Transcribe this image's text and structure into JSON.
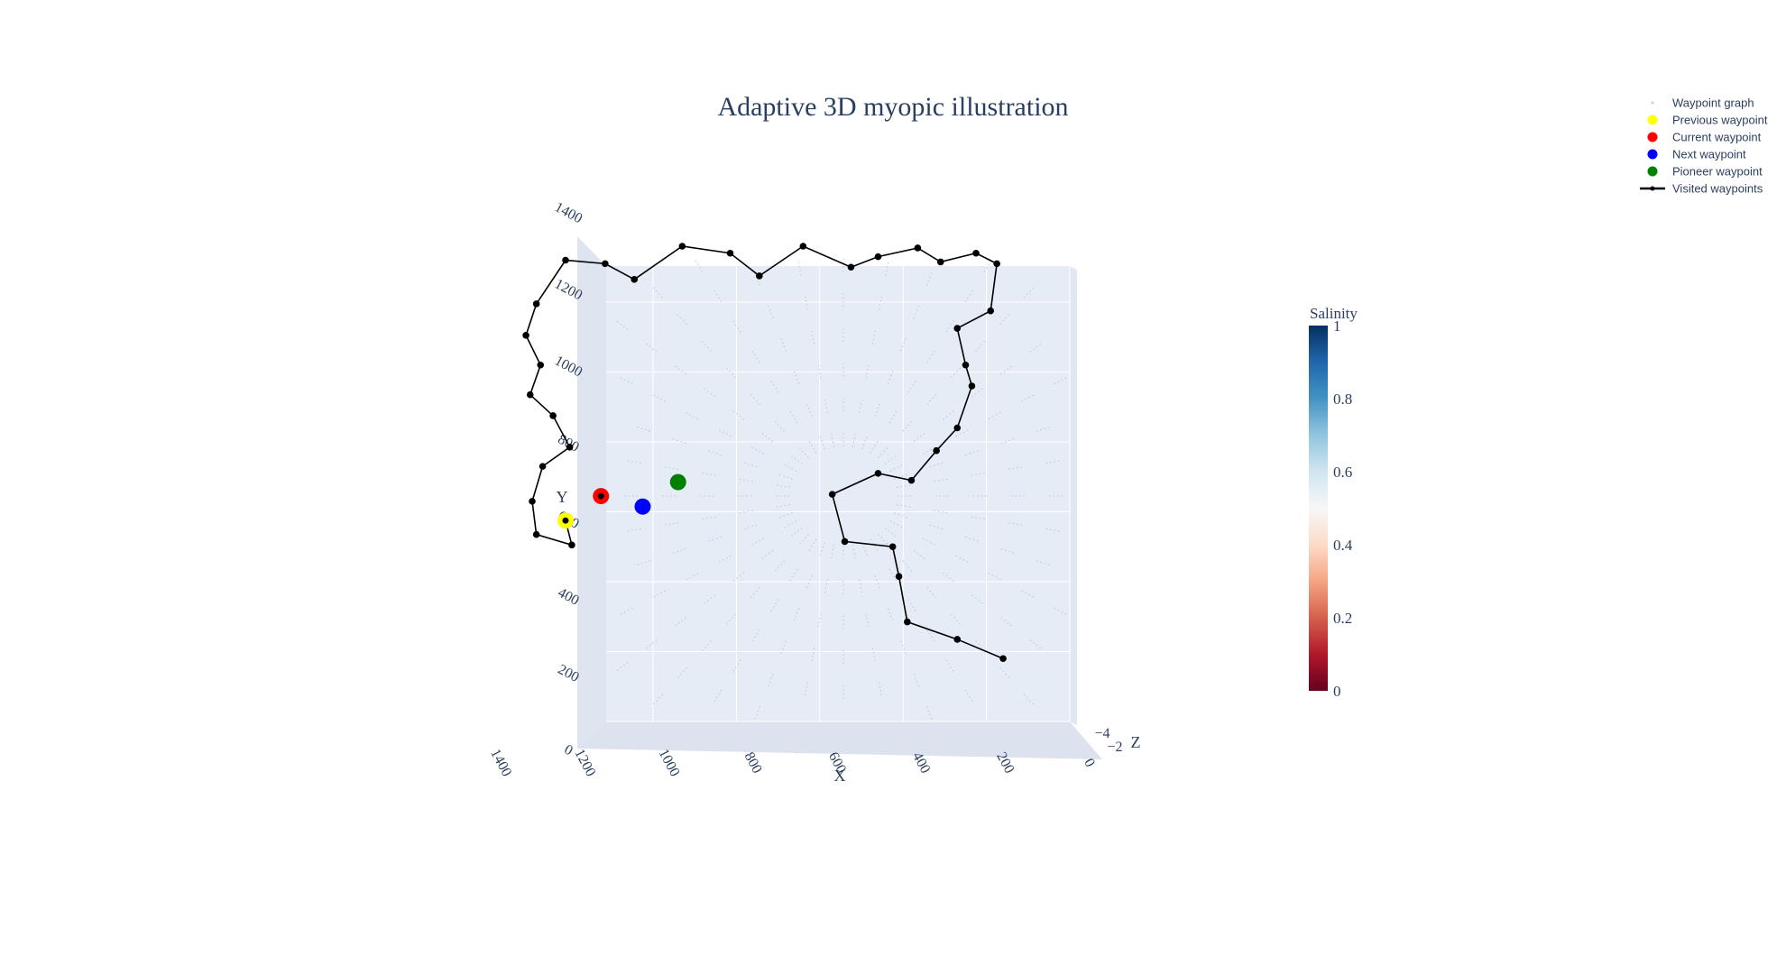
{
  "chart_data": {
    "type": "scatter",
    "title": "Adaptive 3D myopic illustration",
    "xlabel": "X",
    "ylabel": "Y",
    "zlabel": "Z",
    "x_ticks": [
      "0",
      "200",
      "400",
      "600",
      "800",
      "1000",
      "1200",
      "1400"
    ],
    "y_ticks": [
      "0",
      "200",
      "400",
      "600",
      "800",
      "1000",
      "1200",
      "1400"
    ],
    "z_ticks": [
      "−4",
      "−2"
    ],
    "xlim": [
      0,
      1500
    ],
    "ylim": [
      0,
      1450
    ],
    "x_reversed": true,
    "grid": true,
    "legend_position": "top-right",
    "legend": [
      {
        "name": "Waypoint graph",
        "symbol": "dot-small",
        "color": "#c8d0dc"
      },
      {
        "name": "Previous waypoint",
        "symbol": "dot",
        "color": "#ffff00"
      },
      {
        "name": "Current waypoint",
        "symbol": "dot",
        "color": "#ff0000"
      },
      {
        "name": "Next waypoint",
        "symbol": "dot",
        "color": "#0000ff"
      },
      {
        "name": "Pioneer waypoint",
        "symbol": "dot",
        "color": "#008000"
      },
      {
        "name": "Visited waypoints",
        "symbol": "line",
        "color": "#000000"
      }
    ],
    "colorbar": {
      "title": "Salinity",
      "ticks": [
        "0",
        "0.2",
        "0.4",
        "0.6",
        "0.8",
        "1"
      ],
      "range": [
        0,
        1
      ],
      "colorscale": [
        "#67001f",
        "#b2182b",
        "#d6604d",
        "#f4a582",
        "#fddbc7",
        "#f7f7f7",
        "#d1e5f0",
        "#92c5de",
        "#4393c3",
        "#2166ac",
        "#053061"
      ]
    },
    "series": [
      {
        "name": "Visited waypoints",
        "color": "#000000",
        "points": [
          [
            160,
            180
          ],
          [
            270,
            235
          ],
          [
            390,
            285
          ],
          [
            410,
            415
          ],
          [
            425,
            500
          ],
          [
            540,
            515
          ],
          [
            570,
            650
          ],
          [
            460,
            710
          ],
          [
            380,
            690
          ],
          [
            320,
            775
          ],
          [
            270,
            840
          ],
          [
            235,
            960
          ],
          [
            250,
            1020
          ],
          [
            270,
            1125
          ],
          [
            190,
            1175
          ],
          [
            175,
            1310
          ],
          [
            225,
            1340
          ],
          [
            310,
            1315
          ],
          [
            365,
            1355
          ],
          [
            460,
            1330
          ],
          [
            525,
            1300
          ],
          [
            640,
            1360
          ],
          [
            745,
            1275
          ],
          [
            815,
            1340
          ],
          [
            930,
            1360
          ],
          [
            1045,
            1265
          ],
          [
            1115,
            1310
          ],
          [
            1210,
            1320
          ],
          [
            1280,
            1195
          ],
          [
            1305,
            1105
          ],
          [
            1270,
            1020
          ],
          [
            1295,
            935
          ],
          [
            1240,
            875
          ],
          [
            1200,
            785
          ],
          [
            1265,
            730
          ],
          [
            1290,
            630
          ],
          [
            1280,
            535
          ],
          [
            1195,
            505
          ],
          [
            1210,
            575
          ]
        ]
      },
      {
        "name": "Previous waypoint",
        "color": "#ffff00",
        "points": [
          [
            1210,
            575
          ]
        ]
      },
      {
        "name": "Current waypoint",
        "color": "#ff0000",
        "points": [
          [
            1125,
            645
          ]
        ]
      },
      {
        "name": "Next waypoint",
        "color": "#0000ff",
        "points": [
          [
            1025,
            615
          ]
        ]
      },
      {
        "name": "Pioneer waypoint",
        "color": "#008000",
        "points": [
          [
            940,
            685
          ]
        ]
      }
    ]
  }
}
